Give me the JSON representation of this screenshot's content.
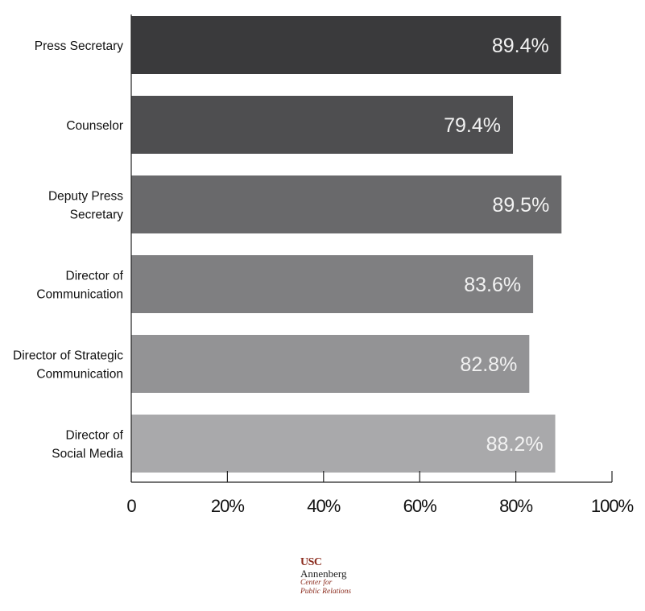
{
  "chart_data": {
    "type": "bar",
    "orientation": "horizontal",
    "title": "",
    "xlabel": "",
    "ylabel": "",
    "categories": [
      [
        "Press Secretary"
      ],
      [
        "Counselor"
      ],
      [
        "Deputy Press",
        "Secretary"
      ],
      [
        "Director of",
        "Communication"
      ],
      [
        "Director of Strategic",
        "Communication"
      ],
      [
        "Director of",
        "Social Media"
      ]
    ],
    "values": [
      89.4,
      79.4,
      89.5,
      83.6,
      82.8,
      88.2
    ],
    "data_labels": [
      "89.4%",
      "79.4%",
      "89.5%",
      "83.6%",
      "82.8%",
      "88.2%"
    ],
    "bar_colors": [
      "#3a3a3c",
      "#4e4e50",
      "#69696b",
      "#7f7f81",
      "#939395",
      "#a9a9ab"
    ],
    "xlim": [
      0,
      100
    ],
    "xticks": [
      0,
      20,
      40,
      60,
      80,
      100
    ],
    "xtick_labels": [
      "0",
      "20%",
      "40%",
      "60%",
      "80%",
      "100%"
    ],
    "grid": false
  },
  "logo": {
    "line1": "USC",
    "line2": "Annenberg",
    "line3": "Center for",
    "line4": "Public Relations"
  }
}
